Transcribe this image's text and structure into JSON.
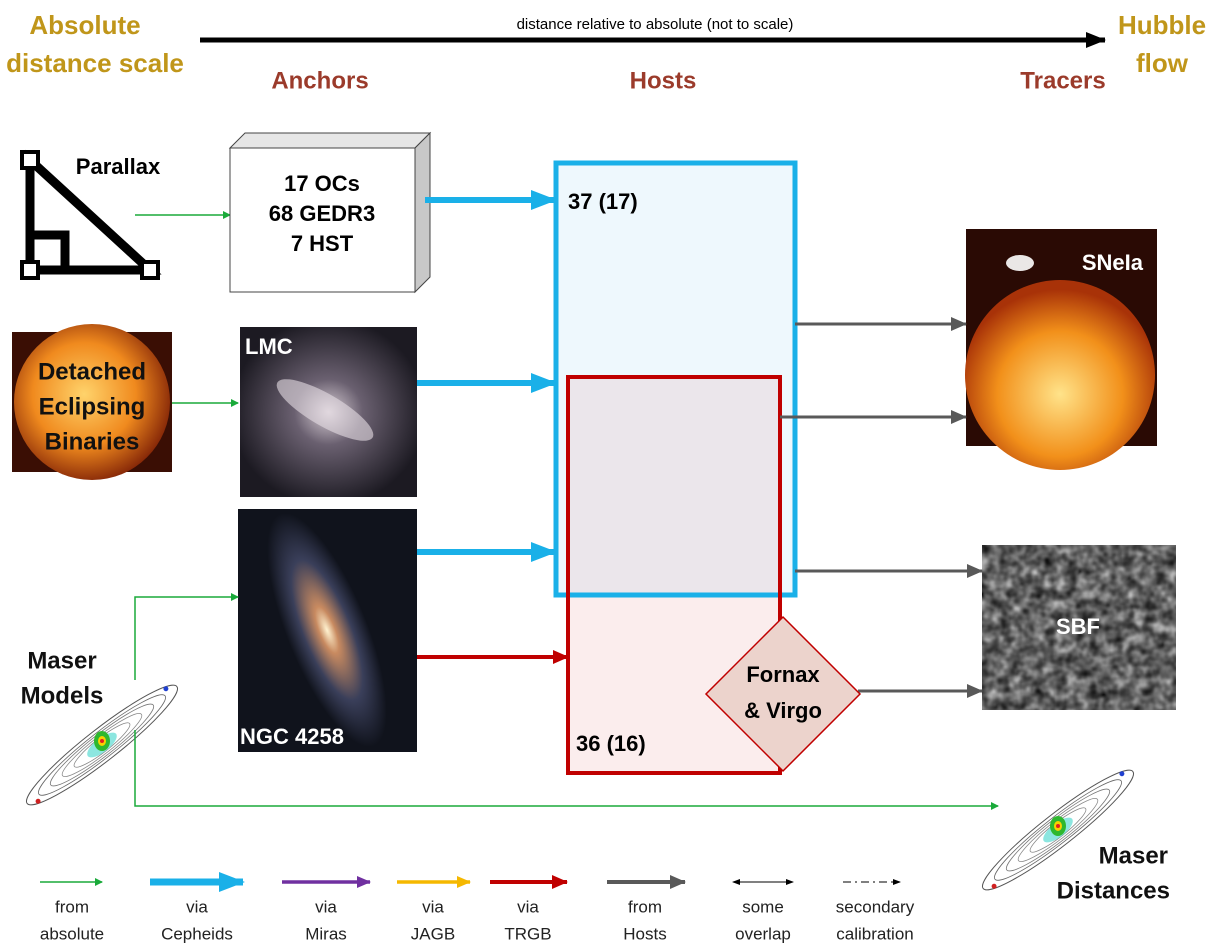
{
  "header": {
    "left": [
      "Absolute",
      "distance scale"
    ],
    "axis_label": "distance relative to absolute (not to scale)",
    "right": [
      "Hubble",
      "flow"
    ]
  },
  "columns": [
    "Anchors",
    "Hosts",
    "Tracers"
  ],
  "sources": {
    "parallax": "Parallax",
    "deb": [
      "Detached",
      "Eclipsing",
      "Binaries"
    ],
    "maser": [
      "Maser",
      "Models"
    ]
  },
  "anchors": {
    "parallax_box": [
      "17 OCs",
      "68 GEDR3",
      "7 HST"
    ],
    "lmc": "LMC",
    "ngc": "NGC 4258"
  },
  "hosts": {
    "cepheid": "37 (17)",
    "trgb": "36 (16)",
    "cluster": [
      "Fornax",
      "& Virgo"
    ]
  },
  "tracers": {
    "snia": "SNeIa",
    "sbf": "SBF",
    "maser": [
      "Maser",
      "Distances"
    ]
  },
  "legend": [
    {
      "lines": [
        "from",
        "absolute"
      ]
    },
    {
      "lines": [
        "via",
        "Cepheids"
      ]
    },
    {
      "lines": [
        "via",
        "Miras"
      ]
    },
    {
      "lines": [
        "via",
        "JAGB"
      ]
    },
    {
      "lines": [
        "via",
        "TRGB"
      ]
    },
    {
      "lines": [
        "from",
        "Hosts"
      ]
    },
    {
      "lines": [
        "some",
        "overlap"
      ]
    },
    {
      "lines": [
        "secondary",
        "calibration"
      ]
    }
  ]
}
